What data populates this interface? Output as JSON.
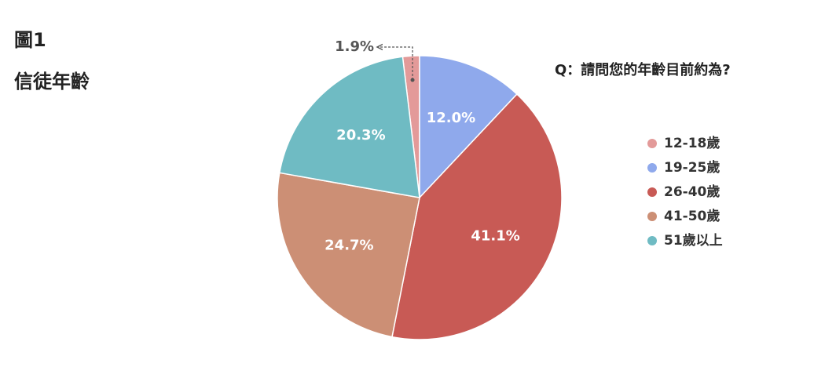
{
  "chart_data": {
    "type": "pie",
    "title": "圖1",
    "subtitle": "信徒年齡",
    "annotation": "Q：請問您的年齡目前約為?",
    "categories": [
      "12-18歲",
      "19-25歲",
      "26-40歲",
      "41-50歲",
      "51歲以上"
    ],
    "values": [
      1.9,
      12.0,
      41.1,
      24.7,
      20.3
    ],
    "value_labels": [
      "1.9%",
      "12.0%",
      "41.1%",
      "24.7%",
      "20.3%"
    ],
    "colors": [
      "#e39a99",
      "#8fa9ec",
      "#c85a55",
      "#cc8f75",
      "#6fbbc3"
    ],
    "legend": "right"
  }
}
